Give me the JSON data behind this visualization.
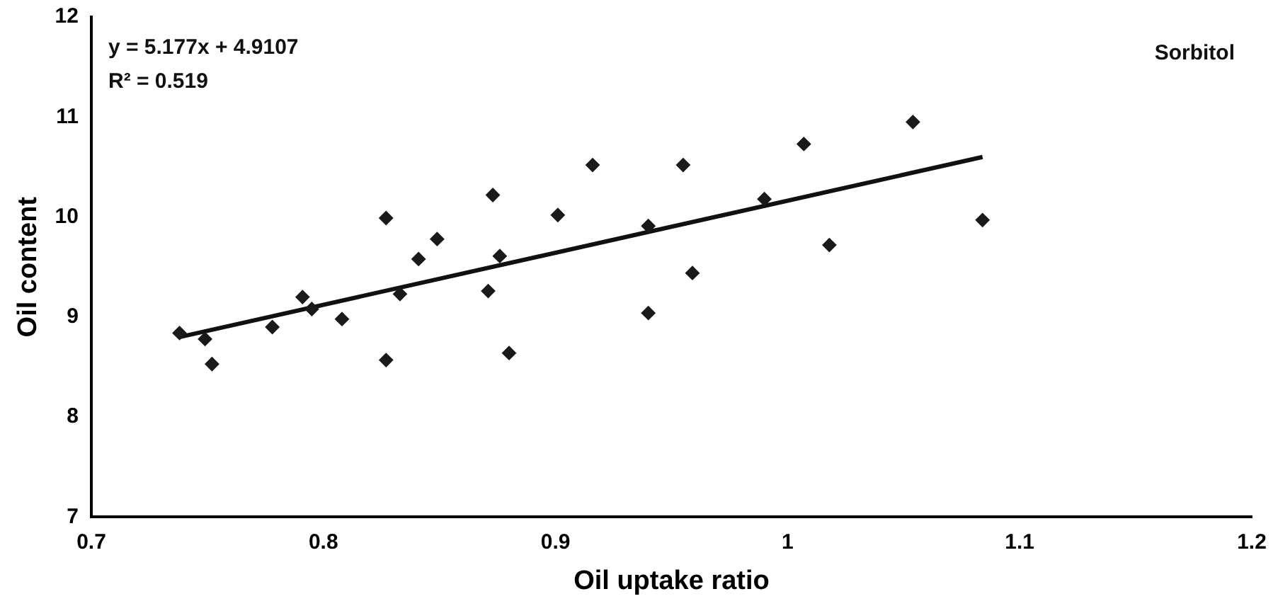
{
  "chart_data": {
    "type": "scatter",
    "xlabel": "Oil uptake ratio",
    "ylabel": "Oil content",
    "annotations": [
      "y = 5.177x + 4.9107",
      "R² = 0.519",
      "Sorbitol"
    ],
    "xlim": [
      0.7,
      1.2
    ],
    "xticks": [
      0.7,
      0.8,
      0.9,
      1,
      1.1,
      1.2
    ],
    "ylim": [
      7,
      12
    ],
    "yticks": [
      7,
      8,
      9,
      10,
      11,
      12
    ],
    "grid": false,
    "legend": false,
    "series": [
      {
        "type": "scatter",
        "marker": "diamond",
        "color": "#1a1a1a",
        "x": [
          0.738,
          0.749,
          0.752,
          0.778,
          0.791,
          0.795,
          0.808,
          0.827,
          0.827,
          0.833,
          0.841,
          0.849,
          0.871,
          0.873,
          0.876,
          0.88,
          0.901,
          0.916,
          0.94,
          0.94,
          0.955,
          0.959,
          0.99,
          1.007,
          1.018,
          1.054,
          1.084
        ],
        "values": [
          8.84,
          8.78,
          8.53,
          8.9,
          9.2,
          9.08,
          8.98,
          9.99,
          8.57,
          9.23,
          9.58,
          9.78,
          9.26,
          10.22,
          9.61,
          8.64,
          10.02,
          10.52,
          9.91,
          9.04,
          10.52,
          9.44,
          10.18,
          10.73,
          9.72,
          10.95,
          9.97
        ]
      },
      {
        "type": "line",
        "marker": "none",
        "color": "#111111",
        "x": [
          0.738,
          1.084
        ],
        "values": [
          8.8,
          10.6
        ]
      }
    ]
  }
}
